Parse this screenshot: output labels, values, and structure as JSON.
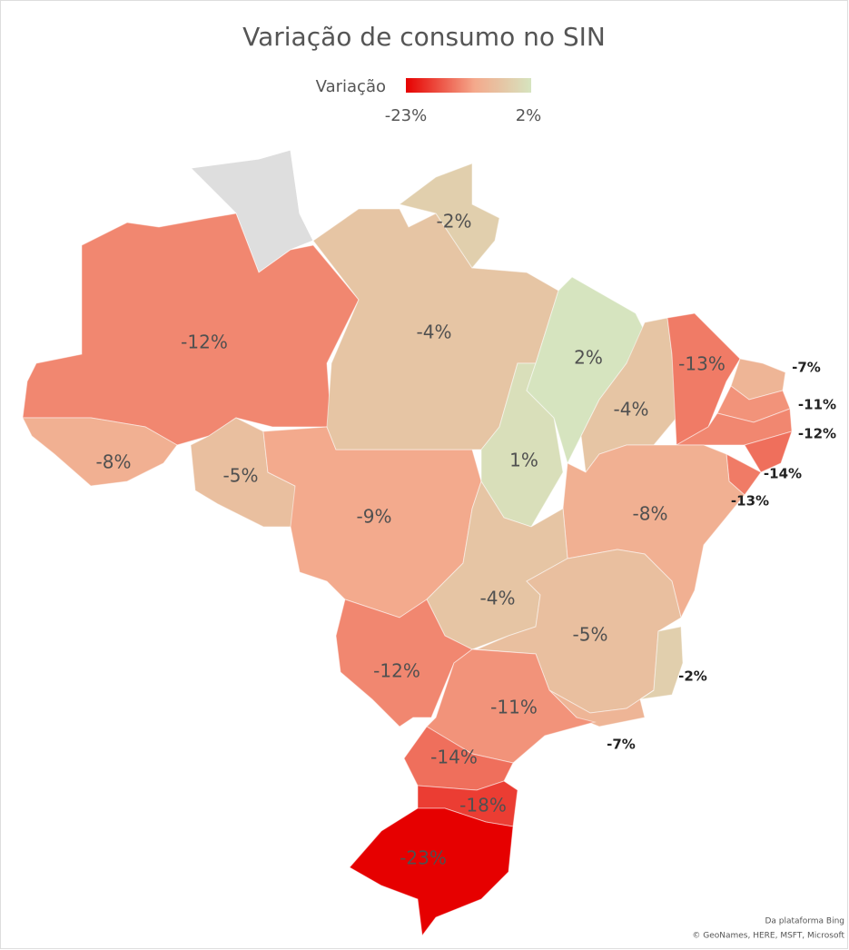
{
  "title": "Variação de consumo no SIN",
  "legend": {
    "title": "Variação",
    "min": {
      "value": -23,
      "label": "-23%",
      "color": "#e60000"
    },
    "max": {
      "value": 2,
      "label": "2%",
      "color": "#d6e4bf"
    }
  },
  "regions": [
    {
      "label": "-12%",
      "value": -12
    },
    {
      "label": "-8%",
      "value": -8
    },
    {
      "label": "-5%",
      "value": -5
    },
    {
      "label": "-9%",
      "value": -9
    },
    {
      "label": "-4%",
      "value": -4
    },
    {
      "label": "-2%",
      "value": -2
    },
    {
      "label": "1%",
      "value": 1
    },
    {
      "label": "2%",
      "value": 2
    },
    {
      "label": "-4%",
      "value": -4
    },
    {
      "label": "-13%",
      "value": -13
    },
    {
      "label": "-7%",
      "value": -7
    },
    {
      "label": "-11%",
      "value": -11
    },
    {
      "label": "-12%",
      "value": -12
    },
    {
      "label": "-14%",
      "value": -14
    },
    {
      "label": "-13%",
      "value": -13
    },
    {
      "label": "-8%",
      "value": -8
    },
    {
      "label": "-4%",
      "value": -4
    },
    {
      "label": "-5%",
      "value": -5
    },
    {
      "label": "-2%",
      "value": -2
    },
    {
      "label": "-7%",
      "value": -7
    },
    {
      "label": "-12%",
      "value": -12
    },
    {
      "label": "-11%",
      "value": -11
    },
    {
      "label": "-14%",
      "value": -14
    },
    {
      "label": "-18%",
      "value": -18
    },
    {
      "label": "-23%",
      "value": -23
    }
  ],
  "attribution": [
    "Da plataforma Bing",
    "© GeoNames, HERE, MSFT, Microsoft"
  ]
}
